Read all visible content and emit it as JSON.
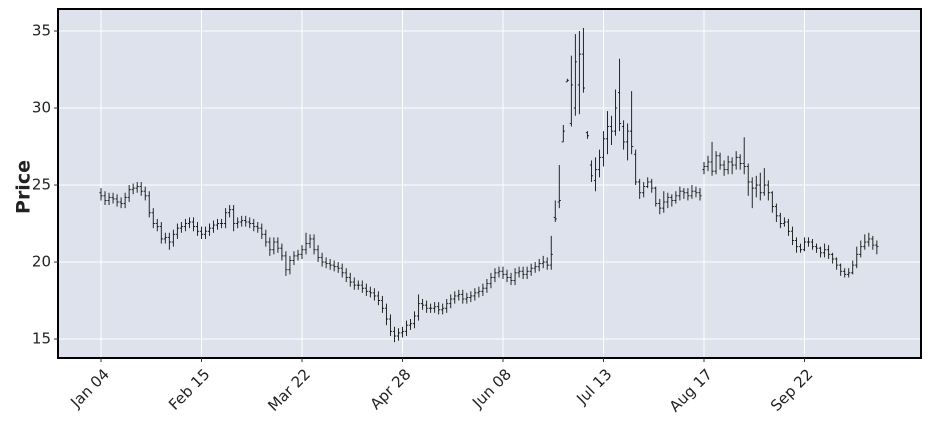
{
  "chart_data": {
    "type": "ohlc",
    "ylabel": "Price",
    "color": "#111111",
    "background": "#dde2ed",
    "grid": true,
    "ylim": [
      13.77,
      36.43
    ],
    "yticks": [
      15,
      20,
      25,
      30,
      35
    ],
    "categories": [
      "Jan 04",
      null,
      null,
      null,
      null,
      null,
      null,
      null,
      null,
      null,
      null,
      null,
      null,
      null,
      null,
      null,
      null,
      null,
      null,
      null,
      null,
      null,
      null,
      null,
      null,
      "Feb 15",
      null,
      null,
      null,
      null,
      null,
      null,
      null,
      null,
      null,
      null,
      null,
      null,
      null,
      null,
      null,
      null,
      null,
      null,
      null,
      null,
      null,
      null,
      null,
      null,
      "Mar 22",
      null,
      null,
      null,
      null,
      null,
      null,
      null,
      null,
      null,
      null,
      null,
      null,
      null,
      null,
      null,
      null,
      null,
      null,
      null,
      null,
      null,
      null,
      null,
      null,
      "Apr 28",
      null,
      null,
      null,
      null,
      null,
      null,
      null,
      null,
      null,
      null,
      null,
      null,
      null,
      null,
      null,
      null,
      null,
      null,
      null,
      null,
      null,
      null,
      null,
      null,
      "Jun 08",
      null,
      null,
      null,
      null,
      null,
      null,
      null,
      null,
      null,
      null,
      null,
      null,
      null,
      null,
      null,
      null,
      null,
      null,
      null,
      null,
      null,
      null,
      null,
      null,
      "Jul 13",
      null,
      null,
      null,
      null,
      null,
      null,
      null,
      null,
      null,
      null,
      null,
      null,
      null,
      null,
      null,
      null,
      null,
      null,
      null,
      null,
      null,
      null,
      null,
      null,
      "Aug 17",
      null,
      null,
      null,
      null,
      null,
      null,
      null,
      null,
      null,
      null,
      null,
      null,
      null,
      null,
      null,
      null,
      null,
      null,
      null,
      null,
      null,
      null,
      null,
      null,
      "Sep 22",
      null,
      null,
      null,
      null,
      null,
      null,
      null,
      null,
      null,
      null,
      null,
      null,
      null,
      null,
      null,
      null,
      null,
      null
    ],
    "open": [
      24.5,
      24.3,
      24.0,
      24.2,
      24.1,
      23.9,
      23.8,
      24.2,
      24.7,
      24.8,
      24.9,
      24.6,
      24.3,
      23.2,
      22.5,
      22.3,
      21.5,
      21.6,
      21.3,
      21.8,
      22.2,
      22.3,
      22.5,
      22.6,
      22.3,
      22.0,
      21.8,
      22.0,
      22.2,
      22.4,
      22.5,
      22.5,
      23.2,
      23.4,
      22.5,
      22.6,
      22.7,
      22.6,
      22.5,
      22.3,
      22.2,
      21.8,
      21.3,
      20.8,
      21.3,
      20.9,
      20.4,
      19.5,
      20.1,
      20.4,
      20.5,
      20.8,
      21.2,
      21.5,
      20.8,
      20.3,
      20.0,
      19.9,
      19.8,
      19.7,
      19.6,
      19.3,
      19.0,
      18.7,
      18.5,
      18.5,
      18.3,
      18.1,
      18.0,
      17.8,
      17.5,
      17.0,
      16.3,
      15.5,
      15.2,
      15.4,
      15.5,
      15.9,
      16.0,
      16.5,
      17.3,
      17.2,
      17.0,
      17.0,
      17.1,
      16.9,
      17.0,
      17.3,
      17.6,
      17.8,
      17.9,
      17.6,
      17.7,
      17.8,
      18.0,
      18.1,
      18.3,
      18.6,
      19.0,
      19.3,
      19.4,
      19.2,
      19.0,
      18.8,
      19.3,
      19.4,
      19.2,
      19.4,
      19.6,
      19.7,
      19.9,
      20.0,
      19.8,
      22.9,
      23.9,
      27.8,
      31.7,
      29.0,
      30.0,
      31.5,
      33.5,
      28.4,
      26.3,
      25.3,
      26.0,
      26.8,
      28.0,
      28.8,
      28.5,
      31.0,
      28.8,
      27.8,
      28.5,
      27.0,
      25.2,
      24.5,
      24.9,
      25.2,
      24.8,
      23.8,
      23.5,
      23.9,
      24.2,
      24.0,
      24.3,
      24.6,
      24.5,
      24.3,
      24.6,
      24.5,
      26.0,
      26.2,
      26.5,
      25.9,
      26.9,
      26.3,
      26.0,
      26.5,
      26.3,
      26.8,
      26.4,
      26.2,
      25.2,
      24.8,
      25.0,
      24.5,
      25.0,
      24.5,
      23.6,
      23.0,
      22.5,
      22.6,
      22.0,
      21.4,
      21.0,
      20.8,
      21.3,
      21.3,
      21.0,
      20.9,
      20.6,
      20.8,
      20.5,
      20.2,
      19.8,
      19.4,
      19.2,
      19.3,
      19.8,
      20.5,
      21.0,
      21.3,
      21.5,
      21.1
    ],
    "high": [
      24.8,
      24.6,
      24.5,
      24.5,
      24.4,
      24.2,
      24.5,
      25.0,
      25.1,
      25.2,
      25.2,
      24.9,
      24.6,
      23.5,
      22.8,
      22.6,
      21.9,
      21.9,
      22.1,
      22.5,
      22.6,
      22.8,
      22.9,
      22.9,
      22.6,
      22.3,
      22.3,
      22.5,
      22.7,
      22.8,
      22.8,
      23.5,
      23.7,
      23.7,
      22.9,
      23.0,
      23.0,
      22.9,
      22.8,
      22.6,
      22.5,
      22.1,
      21.6,
      21.6,
      21.6,
      21.2,
      20.7,
      20.4,
      20.7,
      20.8,
      21.1,
      21.9,
      21.8,
      21.8,
      21.1,
      20.6,
      20.3,
      20.2,
      20.1,
      20.0,
      19.9,
      19.6,
      19.3,
      19.0,
      18.8,
      18.8,
      18.6,
      18.4,
      18.3,
      18.1,
      17.8,
      17.3,
      16.6,
      15.8,
      15.7,
      15.8,
      16.2,
      16.3,
      16.8,
      17.9,
      17.6,
      17.5,
      17.3,
      17.4,
      17.4,
      17.3,
      17.6,
      17.9,
      18.1,
      18.2,
      18.2,
      18.0,
      18.1,
      18.3,
      18.4,
      18.6,
      18.9,
      19.3,
      19.6,
      19.7,
      19.7,
      19.5,
      19.3,
      19.6,
      19.7,
      19.7,
      19.7,
      19.9,
      20.0,
      20.2,
      20.4,
      20.3,
      21.7,
      24.0,
      26.3,
      28.9,
      31.9,
      33.4,
      34.8,
      35.0,
      35.2,
      28.5,
      26.6,
      26.8,
      27.3,
      28.5,
      29.8,
      29.5,
      31.2,
      33.2,
      29.2,
      29.0,
      31.1,
      27.3,
      25.4,
      25.2,
      25.5,
      25.4,
      24.9,
      24.1,
      24.6,
      24.5,
      24.4,
      24.6,
      24.9,
      24.8,
      24.8,
      25.0,
      24.9,
      24.8,
      26.5,
      26.9,
      27.8,
      27.2,
      27.1,
      26.6,
      26.9,
      26.8,
      27.2,
      27.0,
      28.1,
      26.4,
      25.5,
      25.6,
      25.8,
      26.1,
      25.3,
      24.6,
      23.8,
      23.2,
      22.9,
      22.8,
      22.3,
      21.6,
      21.2,
      21.6,
      21.6,
      21.5,
      21.2,
      21.0,
      21.2,
      21.1,
      20.6,
      20.3,
      19.9,
      19.6,
      19.6,
      20.1,
      21.0,
      21.4,
      21.8,
      21.9,
      21.7,
      21.4
    ],
    "low": [
      24.0,
      23.7,
      23.7,
      23.8,
      23.6,
      23.5,
      23.5,
      23.9,
      24.4,
      24.5,
      24.3,
      24.0,
      22.9,
      22.2,
      22.0,
      21.2,
      21.2,
      20.8,
      21.0,
      21.5,
      21.9,
      22.0,
      22.2,
      22.0,
      21.7,
      21.5,
      21.5,
      21.7,
      21.9,
      22.1,
      22.2,
      22.2,
      22.9,
      22.0,
      22.2,
      22.3,
      22.3,
      22.2,
      22.0,
      21.9,
      21.5,
      21.0,
      20.4,
      20.5,
      20.6,
      20.1,
      19.1,
      19.2,
      19.8,
      20.1,
      20.2,
      20.5,
      20.9,
      20.5,
      20.0,
      19.7,
      19.6,
      19.5,
      19.4,
      19.3,
      19.0,
      18.7,
      18.4,
      18.2,
      18.2,
      18.0,
      17.8,
      17.7,
      17.5,
      17.2,
      16.7,
      15.9,
      15.2,
      14.8,
      14.9,
      15.1,
      15.2,
      15.6,
      15.7,
      16.2,
      16.9,
      16.7,
      16.7,
      16.7,
      16.6,
      16.6,
      16.7,
      17.0,
      17.3,
      17.5,
      17.3,
      17.3,
      17.4,
      17.5,
      17.7,
      17.8,
      18.0,
      18.3,
      18.7,
      19.0,
      18.9,
      18.7,
      18.5,
      18.5,
      19.0,
      18.9,
      18.9,
      19.1,
      19.3,
      19.4,
      19.6,
      19.5,
      19.5,
      22.6,
      23.5,
      27.8,
      31.7,
      28.8,
      29.5,
      29.6,
      31.0,
      28.0,
      25.2,
      24.6,
      25.5,
      26.2,
      27.0,
      27.6,
      28.2,
      28.5,
      27.3,
      26.6,
      27.0,
      25.0,
      24.1,
      24.2,
      24.8,
      24.5,
      23.6,
      23.1,
      23.2,
      23.5,
      23.6,
      23.8,
      24.0,
      24.1,
      24.0,
      24.1,
      24.2,
      24.0,
      25.7,
      25.9,
      25.6,
      25.7,
      26.0,
      25.6,
      25.7,
      25.7,
      26.0,
      26.0,
      25.7,
      24.3,
      23.5,
      24.2,
      24.0,
      24.3,
      24.0,
      23.2,
      22.6,
      22.2,
      22.3,
      21.7,
      21.1,
      20.6,
      20.6,
      20.7,
      21.0,
      20.8,
      20.6,
      20.3,
      20.3,
      20.2,
      19.9,
      19.5,
      19.1,
      19.0,
      19.0,
      19.2,
      19.6,
      20.3,
      20.8,
      21.0,
      20.8,
      20.5
    ],
    "close": [
      24.3,
      24.0,
      24.2,
      24.1,
      23.9,
      23.8,
      24.2,
      24.7,
      24.8,
      24.9,
      24.6,
      24.3,
      23.2,
      22.5,
      22.3,
      21.5,
      21.6,
      21.3,
      21.8,
      22.2,
      22.3,
      22.5,
      22.6,
      22.3,
      22.0,
      21.8,
      22.0,
      22.2,
      22.4,
      22.5,
      22.5,
      23.2,
      23.4,
      22.5,
      22.6,
      22.7,
      22.6,
      22.5,
      22.3,
      22.2,
      21.8,
      21.3,
      20.8,
      21.3,
      20.9,
      20.4,
      19.5,
      20.1,
      20.4,
      20.5,
      20.8,
      21.2,
      21.5,
      20.8,
      20.3,
      20.0,
      19.9,
      19.8,
      19.7,
      19.6,
      19.3,
      19.0,
      18.7,
      18.5,
      18.5,
      18.3,
      18.1,
      18.0,
      17.8,
      17.5,
      17.0,
      16.3,
      15.5,
      15.2,
      15.4,
      15.5,
      15.9,
      16.0,
      16.5,
      17.3,
      17.2,
      17.0,
      17.0,
      17.1,
      16.9,
      17.0,
      17.3,
      17.6,
      17.8,
      17.9,
      17.6,
      17.7,
      17.8,
      18.0,
      18.1,
      18.3,
      18.6,
      19.0,
      19.3,
      19.4,
      19.2,
      19.0,
      18.8,
      19.3,
      19.4,
      19.2,
      19.4,
      19.6,
      19.7,
      19.9,
      20.0,
      19.8,
      20.5,
      22.8,
      24.0,
      28.5,
      31.8,
      31.5,
      33.0,
      33.5,
      31.3,
      28.2,
      25.6,
      26.0,
      26.8,
      28.0,
      28.8,
      28.5,
      30.0,
      29.0,
      27.8,
      28.5,
      27.5,
      25.2,
      24.5,
      24.9,
      25.2,
      24.8,
      23.8,
      23.5,
      23.9,
      24.2,
      24.0,
      24.3,
      24.6,
      24.5,
      24.3,
      24.6,
      24.5,
      24.3,
      26.2,
      26.5,
      25.9,
      26.9,
      26.3,
      26.0,
      26.5,
      26.3,
      26.8,
      26.4,
      26.2,
      25.2,
      24.8,
      25.0,
      24.5,
      25.0,
      24.5,
      23.6,
      23.0,
      22.5,
      22.6,
      22.0,
      21.4,
      21.0,
      20.8,
      21.3,
      21.3,
      21.0,
      20.9,
      20.6,
      20.8,
      20.5,
      20.2,
      19.8,
      19.4,
      19.2,
      19.3,
      19.8,
      20.5,
      21.0,
      21.3,
      21.5,
      21.1,
      21.0
    ]
  }
}
